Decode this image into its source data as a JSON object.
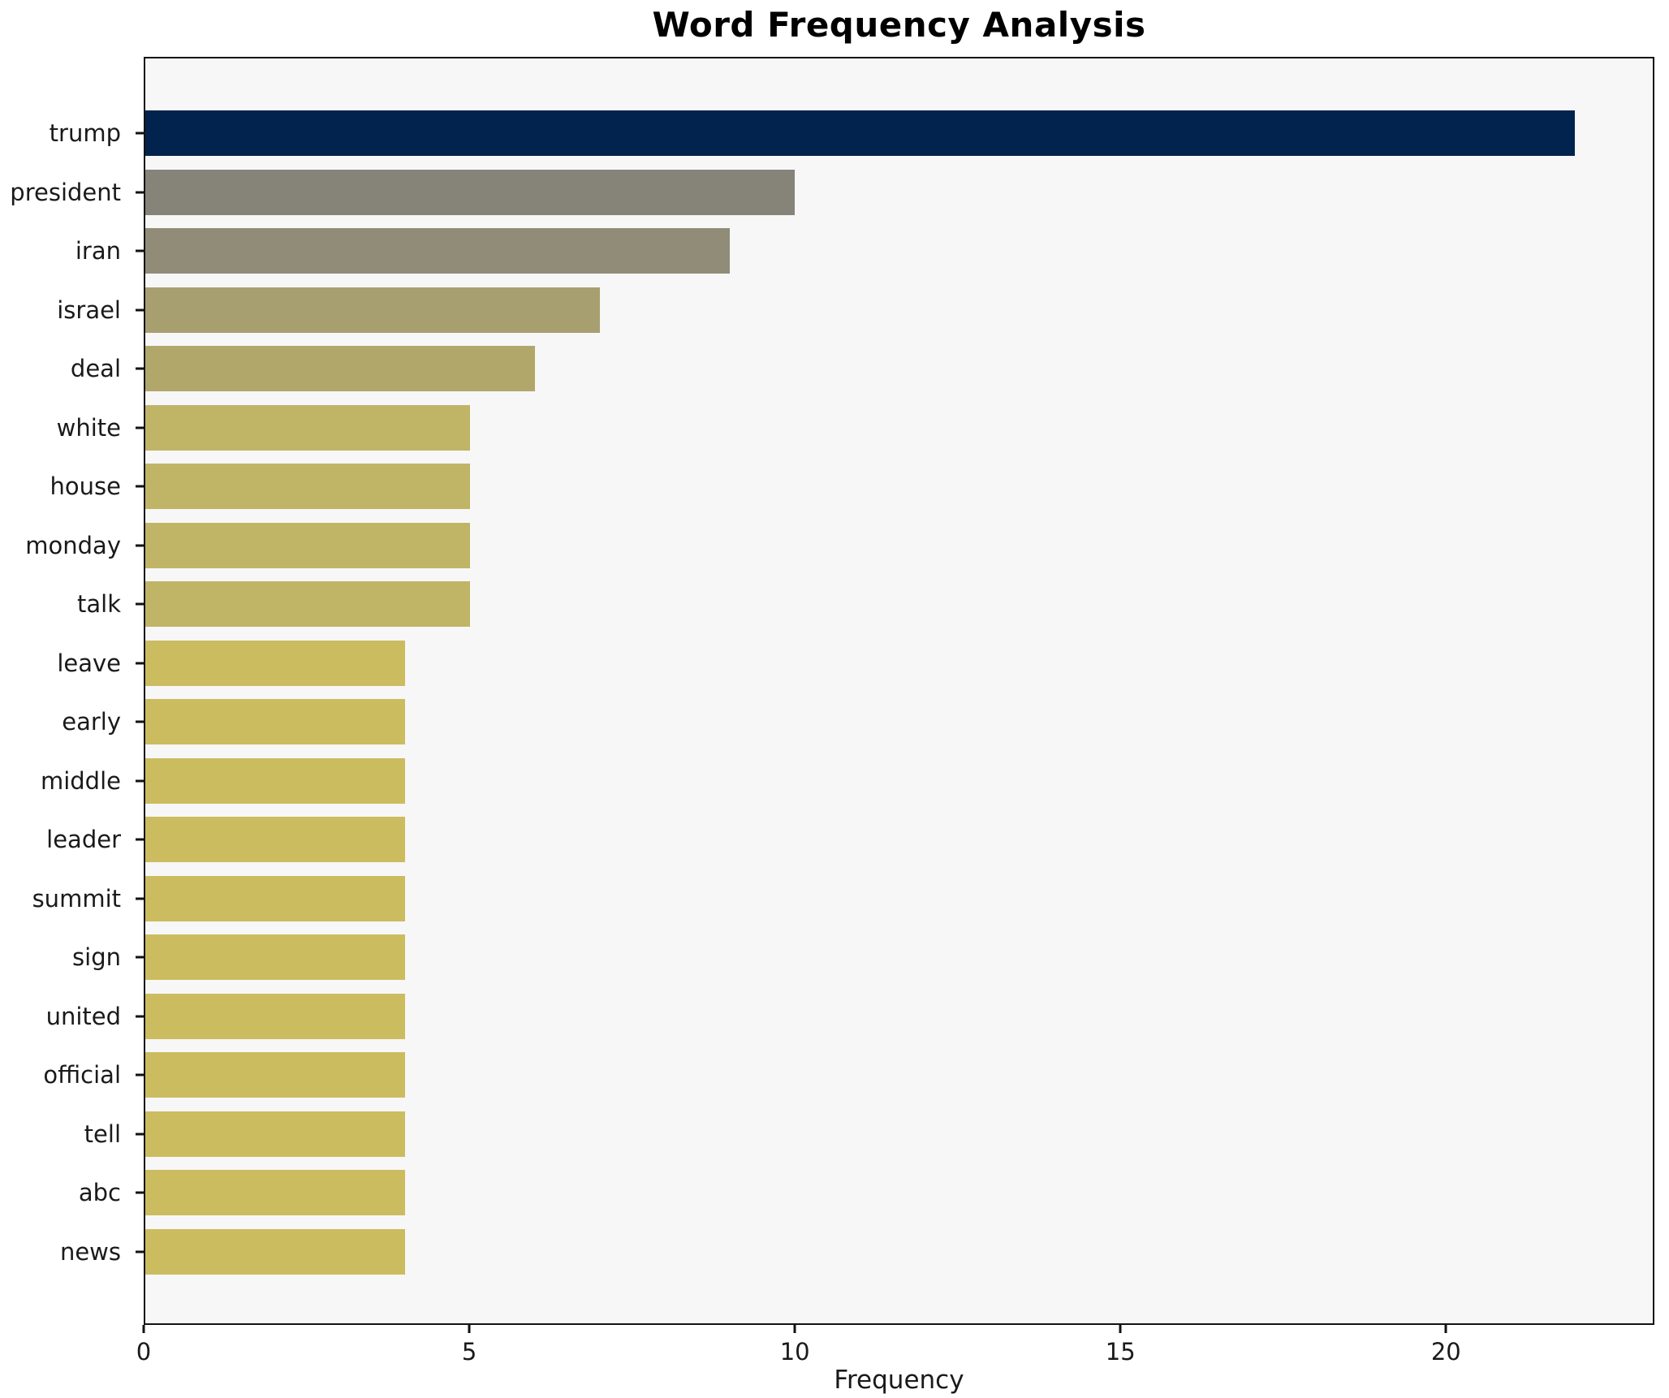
{
  "chart_data": {
    "type": "bar",
    "orientation": "horizontal",
    "title": "Word Frequency Analysis",
    "xlabel": "Frequency",
    "categories": [
      "trump",
      "president",
      "iran",
      "israel",
      "deal",
      "white",
      "house",
      "monday",
      "talk",
      "leave",
      "early",
      "middle",
      "leader",
      "summit",
      "sign",
      "united",
      "official",
      "tell",
      "abc",
      "news"
    ],
    "values": [
      22,
      10,
      9,
      7,
      6,
      5,
      5,
      5,
      5,
      4,
      4,
      4,
      4,
      4,
      4,
      4,
      4,
      4,
      4,
      4
    ],
    "bar_colors": [
      "#02234d",
      "#868378",
      "#918c78",
      "#a89f70",
      "#b1a76b",
      "#c0b467",
      "#c0b467",
      "#c0b467",
      "#c0b467",
      "#ccbc60",
      "#ccbc60",
      "#ccbc60",
      "#ccbc60",
      "#ccbc60",
      "#ccbc60",
      "#ccbc60",
      "#ccbc60",
      "#ccbc60",
      "#ccbc60",
      "#ccbc60"
    ],
    "xlim": [
      0,
      23.2
    ],
    "xticks": [
      0,
      5,
      10,
      15,
      20
    ],
    "grid": false,
    "legend": "none",
    "plot_background": "#f7f7f8",
    "figure_background": "#ffffff",
    "spine_color": "#121212",
    "text_color": "#1a1a1a"
  }
}
